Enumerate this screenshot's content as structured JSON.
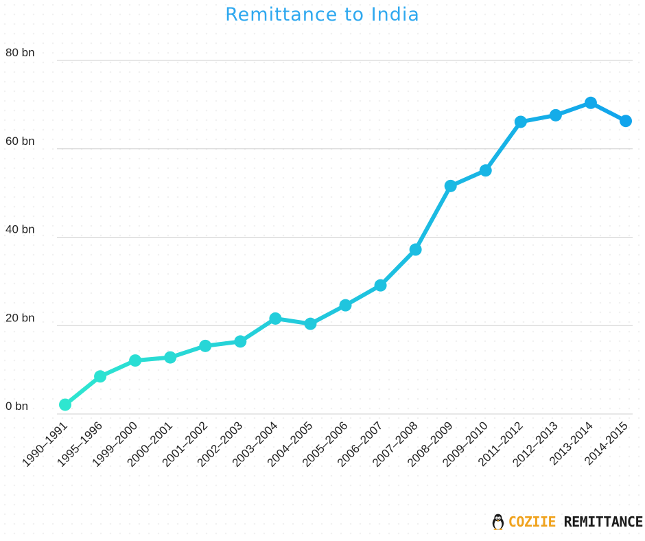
{
  "chart_data": {
    "type": "line",
    "title": "Remittance to India",
    "xlabel": "",
    "ylabel": "",
    "categories": [
      "1990–1991",
      "1995–1996",
      "1999–2000",
      "2000–2001",
      "2001–2002",
      "2002–2003",
      "2003–2004",
      "2004–2005",
      "2005–2006",
      "2006–2007",
      "2007–2008",
      "2008–2009",
      "2009–2010",
      "2011–2012",
      "2012–2013",
      "2013-2014",
      "2014-2015"
    ],
    "series": [
      {
        "values": [
          2.1,
          8.5,
          12.1,
          12.8,
          15.4,
          16.4,
          21.6,
          20.4,
          24.6,
          29.1,
          37.2,
          51.6,
          55.1,
          66.1,
          67.6,
          70.4,
          66.3
        ]
      }
    ],
    "ylim": [
      0,
      80
    ],
    "yticks": [
      0,
      20,
      40,
      60,
      80
    ],
    "ytick_labels": [
      "0 bn",
      "20 bn",
      "40 bn",
      "60 bn",
      "80 bn"
    ],
    "grid": true,
    "legend": "none",
    "colors": {
      "line_start": "#2ee6d0",
      "line_end": "#11a4ec",
      "grid": "#cfcfcf",
      "axis_text": "#222222",
      "title": "#2ea8ef"
    }
  },
  "brand": {
    "word1": "COZIIE",
    "word2": "REMITTANCE",
    "logo_icon": "penguin-icon"
  }
}
